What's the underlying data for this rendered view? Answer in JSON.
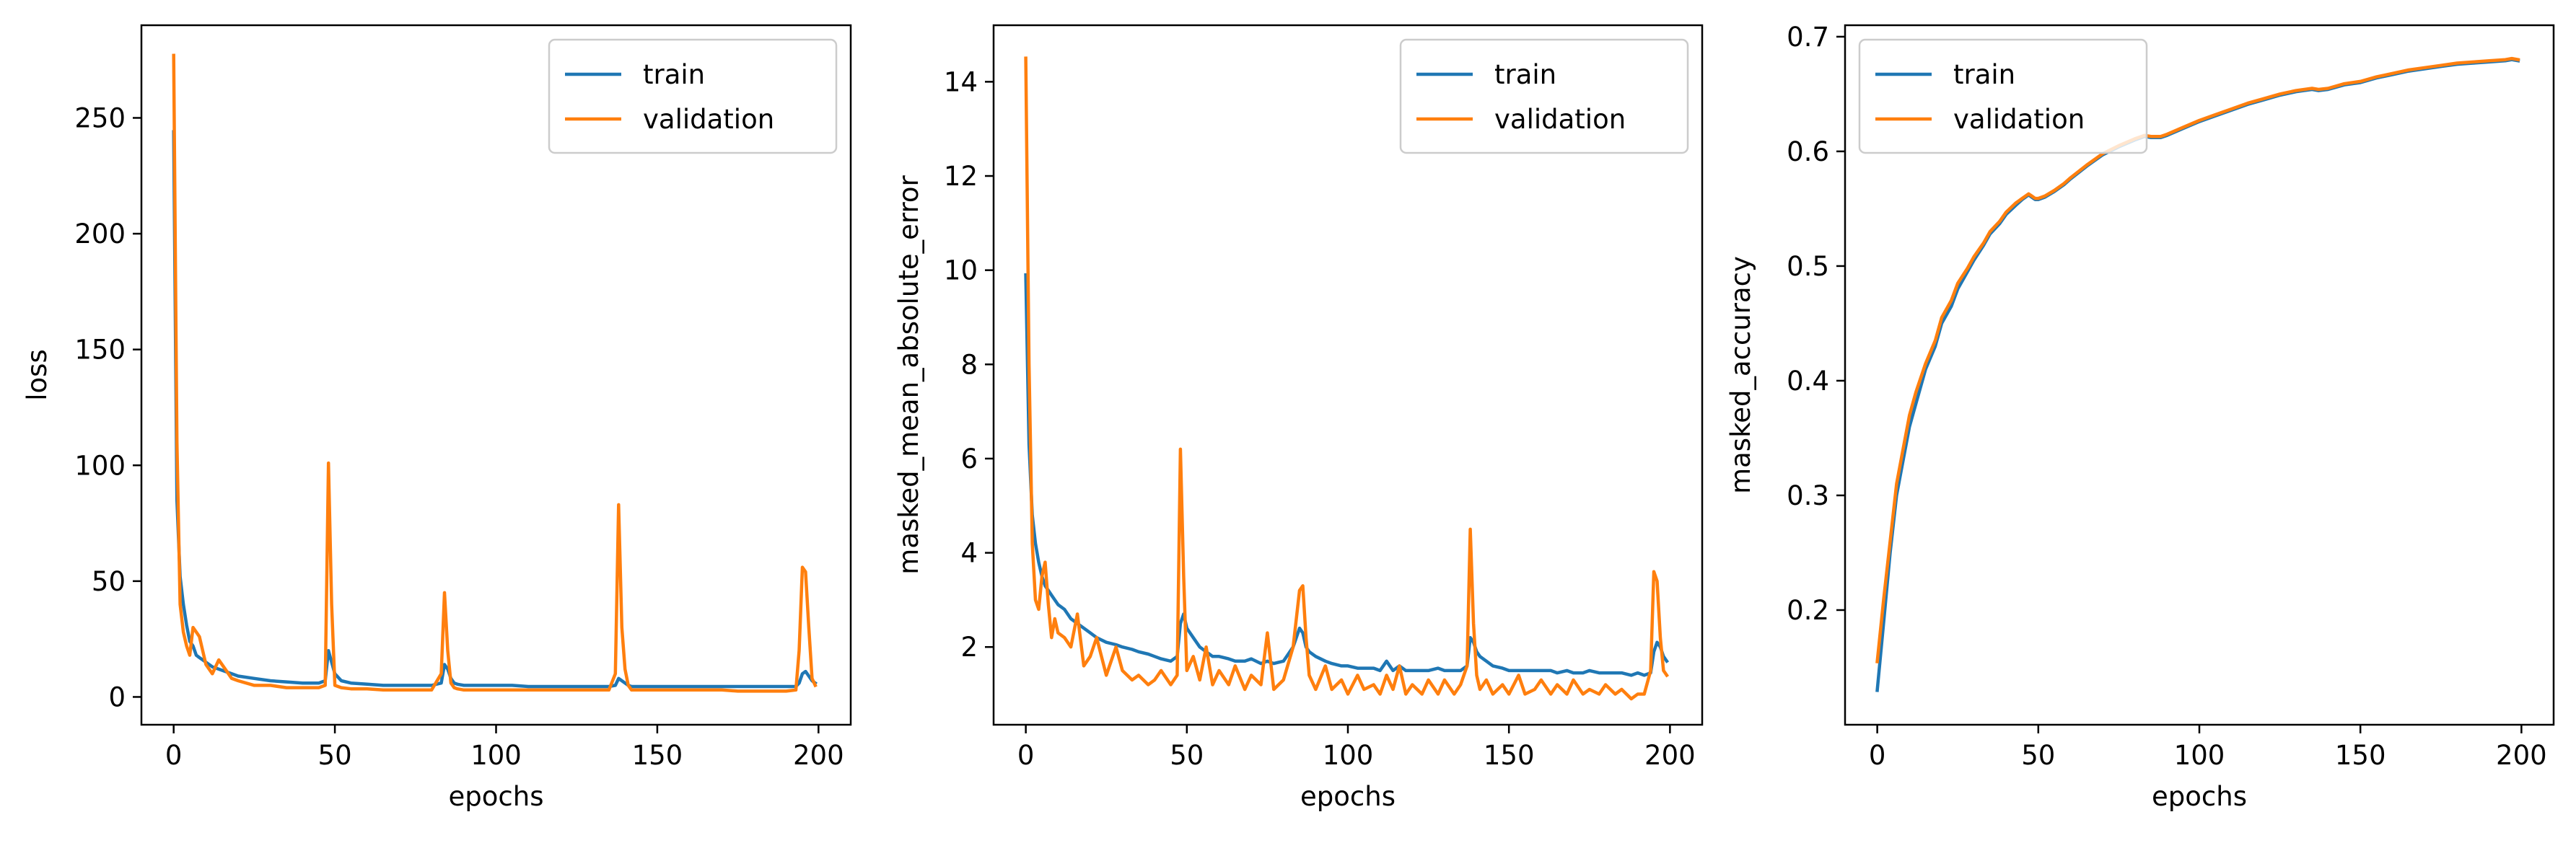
{
  "chart_data": [
    {
      "type": "line",
      "xlabel": "epochs",
      "ylabel": "loss",
      "xlim": [
        -10,
        210
      ],
      "ylim": [
        -12,
        290
      ],
      "xticks": [
        0,
        50,
        100,
        150,
        200
      ],
      "yticks": [
        0,
        50,
        100,
        150,
        200,
        250
      ],
      "xtick_labels": [
        "0",
        "50",
        "100",
        "150",
        "200"
      ],
      "ytick_labels": [
        "0",
        "50",
        "100",
        "150",
        "200",
        "250"
      ],
      "legend_position": "top-right",
      "grid": false,
      "x": [
        0,
        1,
        2,
        3,
        4,
        5,
        6,
        7,
        8,
        9,
        10,
        12,
        14,
        16,
        18,
        20,
        25,
        30,
        35,
        40,
        45,
        47,
        48,
        49,
        50,
        52,
        55,
        60,
        65,
        70,
        75,
        80,
        83,
        84,
        85,
        86,
        87,
        88,
        90,
        95,
        100,
        105,
        110,
        115,
        120,
        125,
        130,
        135,
        137,
        138,
        139,
        140,
        141,
        142,
        145,
        150,
        155,
        160,
        165,
        170,
        175,
        180,
        185,
        190,
        193,
        194,
        195,
        196,
        197,
        198,
        199
      ],
      "series": [
        {
          "name": "train",
          "color": "#1f77b4",
          "values": [
            244,
            85,
            52,
            40,
            31,
            24,
            22,
            18,
            17,
            16,
            15,
            13,
            12,
            11,
            10,
            9,
            8,
            7,
            6.5,
            6,
            6,
            7,
            20,
            15,
            10,
            7,
            6,
            5.5,
            5,
            5,
            5,
            5,
            6,
            14,
            12,
            8,
            6,
            5.5,
            5,
            5,
            5,
            5,
            4.5,
            4.5,
            4.5,
            4.5,
            4.5,
            4.5,
            5,
            8,
            7,
            6,
            5,
            4.5,
            4.5,
            4.5,
            4.5,
            4.5,
            4.5,
            4.5,
            4.5,
            4.5,
            4.5,
            4.5,
            4.5,
            6,
            10,
            11,
            9,
            7,
            6
          ]
        },
        {
          "name": "validation",
          "color": "#ff7f0e",
          "values": [
            277,
            110,
            40,
            28,
            22,
            18,
            30,
            28,
            26,
            20,
            14,
            10,
            16,
            12,
            8,
            7,
            5,
            5,
            4,
            4,
            4,
            5,
            101,
            40,
            5,
            4,
            3.5,
            3.5,
            3,
            3,
            3,
            3,
            10,
            45,
            20,
            6,
            4,
            3.5,
            3,
            3,
            3,
            3,
            3,
            3,
            3,
            3,
            3,
            3,
            10,
            83,
            30,
            12,
            5,
            3,
            3,
            3,
            3,
            3,
            3,
            3,
            2.5,
            2.5,
            2.5,
            2.5,
            3,
            20,
            56,
            54,
            30,
            8,
            5
          ]
        }
      ]
    },
    {
      "type": "line",
      "xlabel": "epochs",
      "ylabel": "masked_mean_absolute_error",
      "xlim": [
        -10,
        210
      ],
      "ylim": [
        0.35,
        15.2
      ],
      "xticks": [
        0,
        50,
        100,
        150,
        200
      ],
      "yticks": [
        2,
        4,
        6,
        8,
        10,
        12,
        14
      ],
      "xtick_labels": [
        "0",
        "50",
        "100",
        "150",
        "200"
      ],
      "ytick_labels": [
        "2",
        "4",
        "6",
        "8",
        "10",
        "12",
        "14"
      ],
      "legend_position": "top-right",
      "grid": false,
      "x": [
        0,
        1,
        2,
        3,
        4,
        5,
        6,
        7,
        8,
        9,
        10,
        12,
        14,
        16,
        18,
        20,
        22,
        25,
        28,
        30,
        33,
        35,
        38,
        40,
        42,
        45,
        47,
        48,
        49,
        50,
        52,
        54,
        56,
        58,
        60,
        63,
        65,
        68,
        70,
        73,
        75,
        77,
        80,
        83,
        85,
        86,
        87,
        88,
        90,
        93,
        95,
        98,
        100,
        103,
        105,
        108,
        110,
        112,
        114,
        116,
        118,
        120,
        123,
        125,
        128,
        130,
        133,
        135,
        137,
        138,
        139,
        140,
        141,
        143,
        145,
        148,
        150,
        153,
        155,
        158,
        160,
        163,
        165,
        168,
        170,
        173,
        175,
        178,
        180,
        183,
        185,
        188,
        190,
        192,
        194,
        195,
        196,
        197,
        198,
        199
      ],
      "series": [
        {
          "name": "train",
          "color": "#1f77b4",
          "values": [
            9.9,
            6.3,
            4.8,
            4.2,
            3.8,
            3.5,
            3.3,
            3.2,
            3.1,
            3.0,
            2.9,
            2.8,
            2.6,
            2.5,
            2.4,
            2.3,
            2.2,
            2.1,
            2.05,
            2.0,
            1.95,
            1.9,
            1.85,
            1.8,
            1.75,
            1.7,
            1.8,
            2.5,
            2.7,
            2.4,
            2.2,
            2.0,
            1.9,
            1.8,
            1.8,
            1.75,
            1.7,
            1.7,
            1.75,
            1.65,
            1.7,
            1.65,
            1.7,
            2.0,
            2.4,
            2.3,
            2.0,
            1.9,
            1.8,
            1.7,
            1.65,
            1.6,
            1.6,
            1.55,
            1.55,
            1.55,
            1.5,
            1.7,
            1.5,
            1.6,
            1.5,
            1.5,
            1.5,
            1.5,
            1.55,
            1.5,
            1.5,
            1.5,
            1.6,
            2.2,
            2.1,
            1.9,
            1.8,
            1.7,
            1.6,
            1.55,
            1.5,
            1.5,
            1.5,
            1.5,
            1.5,
            1.5,
            1.45,
            1.5,
            1.45,
            1.45,
            1.5,
            1.45,
            1.45,
            1.45,
            1.45,
            1.4,
            1.45,
            1.4,
            1.45,
            1.9,
            2.1,
            2.0,
            1.8,
            1.7
          ]
        },
        {
          "name": "validation",
          "color": "#ff7f0e",
          "values": [
            14.5,
            8.0,
            4.2,
            3.0,
            2.8,
            3.5,
            3.8,
            2.9,
            2.2,
            2.6,
            2.3,
            2.2,
            2.0,
            2.7,
            1.6,
            1.8,
            2.2,
            1.4,
            2.0,
            1.5,
            1.3,
            1.4,
            1.2,
            1.3,
            1.5,
            1.2,
            1.4,
            6.2,
            3.5,
            1.5,
            1.8,
            1.3,
            2.0,
            1.2,
            1.5,
            1.2,
            1.6,
            1.1,
            1.4,
            1.2,
            2.3,
            1.1,
            1.3,
            2.0,
            3.2,
            3.3,
            2.2,
            1.4,
            1.1,
            1.6,
            1.1,
            1.3,
            1.0,
            1.4,
            1.1,
            1.2,
            1.0,
            1.4,
            1.1,
            1.6,
            1.0,
            1.2,
            1.0,
            1.3,
            1.0,
            1.3,
            1.0,
            1.2,
            1.6,
            4.5,
            2.5,
            1.4,
            1.1,
            1.3,
            1.0,
            1.2,
            1.0,
            1.4,
            1.0,
            1.1,
            1.3,
            1.0,
            1.2,
            1.0,
            1.3,
            1.0,
            1.1,
            1.0,
            1.2,
            1.0,
            1.1,
            0.9,
            1.0,
            1.0,
            1.5,
            3.6,
            3.4,
            2.2,
            1.5,
            1.4
          ]
        }
      ]
    },
    {
      "type": "line",
      "xlabel": "epochs",
      "ylabel": "masked_accuracy",
      "xlim": [
        -10,
        210
      ],
      "ylim": [
        0.1,
        0.71
      ],
      "xticks": [
        0,
        50,
        100,
        150,
        200
      ],
      "yticks": [
        0.2,
        0.3,
        0.4,
        0.5,
        0.6,
        0.7
      ],
      "xtick_labels": [
        "0",
        "50",
        "100",
        "150",
        "200"
      ],
      "ytick_labels": [
        "0.2",
        "0.3",
        "0.4",
        "0.5",
        "0.6",
        "0.7"
      ],
      "legend_position": "top-left",
      "grid": false,
      "x": [
        0,
        2,
        4,
        6,
        8,
        10,
        12,
        15,
        18,
        20,
        23,
        25,
        28,
        30,
        33,
        35,
        38,
        40,
        43,
        45,
        47,
        48,
        49,
        50,
        52,
        55,
        58,
        60,
        65,
        70,
        75,
        80,
        83,
        85,
        88,
        90,
        95,
        100,
        105,
        110,
        115,
        120,
        125,
        130,
        135,
        137,
        140,
        145,
        150,
        155,
        160,
        165,
        170,
        175,
        180,
        185,
        190,
        195,
        197,
        199
      ],
      "series": [
        {
          "name": "train",
          "color": "#1f77b4",
          "values": [
            0.13,
            0.19,
            0.25,
            0.3,
            0.33,
            0.36,
            0.38,
            0.41,
            0.43,
            0.45,
            0.465,
            0.48,
            0.495,
            0.505,
            0.518,
            0.528,
            0.537,
            0.545,
            0.553,
            0.558,
            0.562,
            0.56,
            0.558,
            0.558,
            0.56,
            0.565,
            0.571,
            0.576,
            0.587,
            0.597,
            0.604,
            0.61,
            0.613,
            0.612,
            0.612,
            0.614,
            0.62,
            0.626,
            0.631,
            0.636,
            0.641,
            0.645,
            0.649,
            0.652,
            0.654,
            0.653,
            0.654,
            0.658,
            0.66,
            0.664,
            0.667,
            0.67,
            0.672,
            0.674,
            0.676,
            0.677,
            0.678,
            0.679,
            0.68,
            0.679
          ]
        },
        {
          "name": "validation",
          "color": "#ff7f0e",
          "values": [
            0.155,
            0.21,
            0.26,
            0.31,
            0.34,
            0.37,
            0.39,
            0.415,
            0.435,
            0.455,
            0.47,
            0.485,
            0.498,
            0.508,
            0.52,
            0.53,
            0.539,
            0.547,
            0.555,
            0.559,
            0.563,
            0.561,
            0.559,
            0.559,
            0.561,
            0.566,
            0.572,
            0.577,
            0.588,
            0.598,
            0.605,
            0.611,
            0.614,
            0.613,
            0.613,
            0.615,
            0.621,
            0.627,
            0.632,
            0.637,
            0.642,
            0.646,
            0.65,
            0.653,
            0.655,
            0.654,
            0.655,
            0.659,
            0.661,
            0.665,
            0.668,
            0.671,
            0.673,
            0.675,
            0.677,
            0.678,
            0.679,
            0.68,
            0.681,
            0.68
          ]
        }
      ]
    }
  ]
}
